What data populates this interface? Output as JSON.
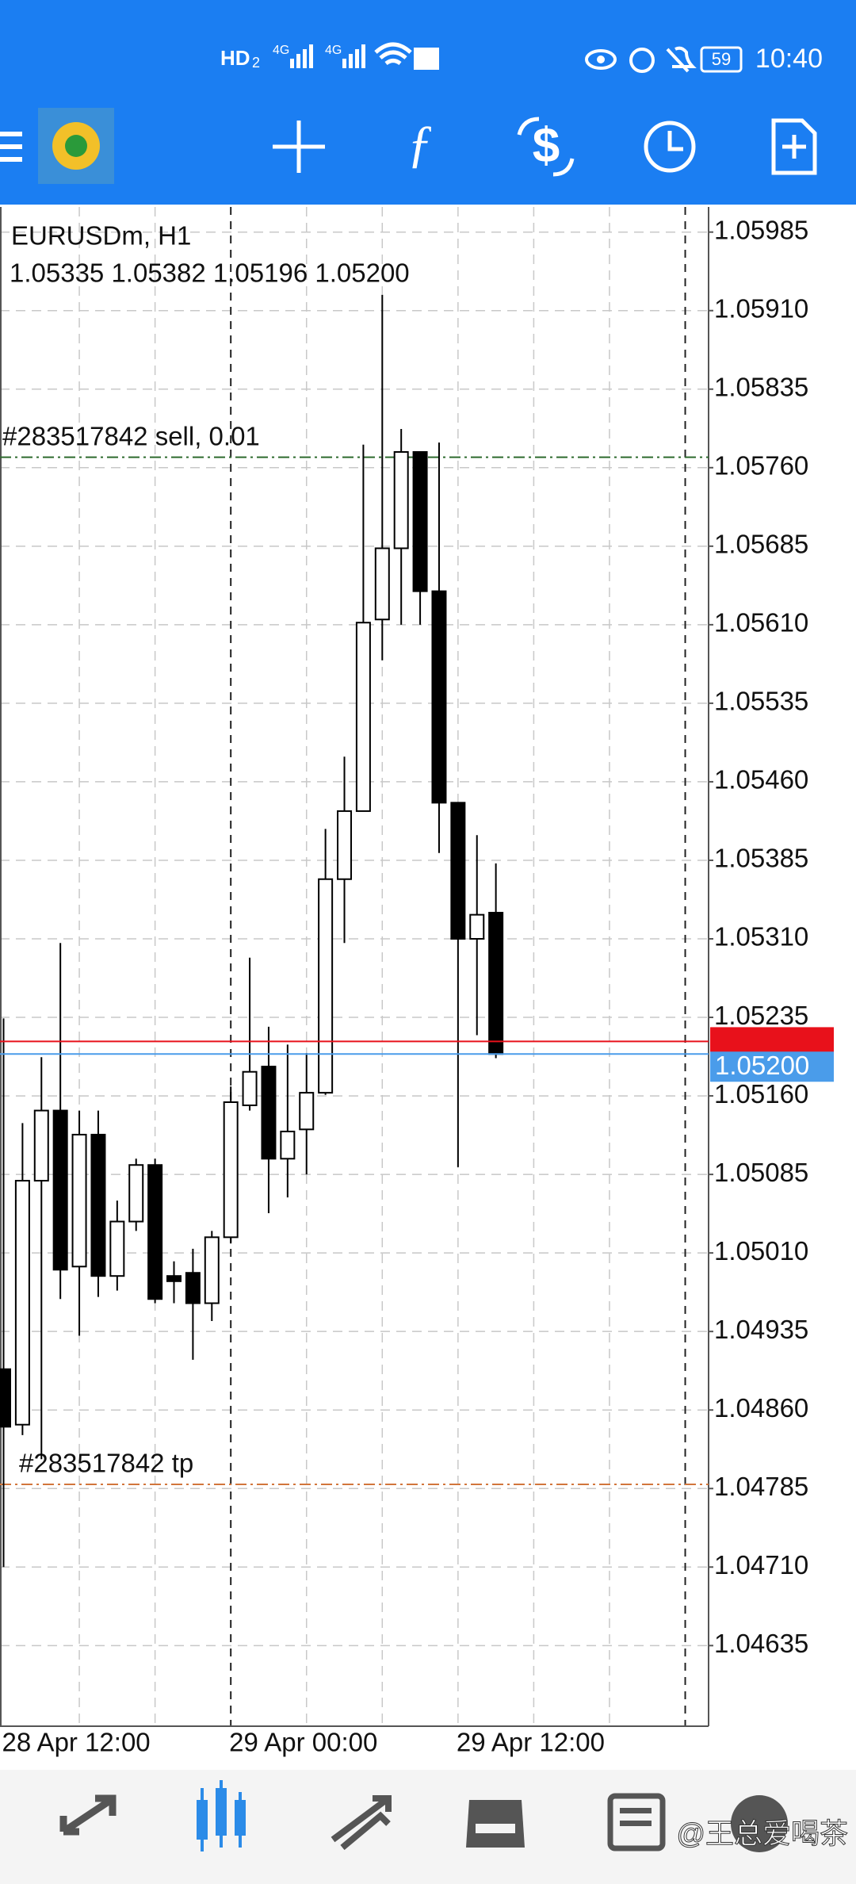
{
  "status_bar": {
    "network": "HD",
    "sim": "2",
    "signal_labels": [
      "4G",
      "4G"
    ],
    "battery": "59",
    "time": "10:40"
  },
  "watermark": "@王总爱喝茶",
  "chart_data": {
    "type": "candlestick",
    "symbol": "EURUSDm, H1",
    "ohlc_label": "1.05335 1.05382 1.05196 1.05200",
    "categories": [
      "28 Apr 12:00",
      null,
      null,
      null,
      null,
      null,
      null,
      null,
      null,
      null,
      null,
      null,
      "29 Apr 00:00",
      null,
      null,
      null,
      null,
      null,
      null,
      null,
      null,
      null,
      null,
      null,
      "29 Apr 12:00",
      null,
      null
    ],
    "open": [
      1.04899,
      1.04846,
      1.05079,
      1.05146,
      1.04997,
      1.05123,
      1.04988,
      1.0504,
      1.05094,
      1.04988,
      1.04991,
      1.04962,
      1.05025,
      1.05151,
      1.05188,
      1.051,
      1.05128,
      1.05163,
      1.05367,
      1.05432,
      1.05615,
      1.05683,
      1.05775,
      1.05642,
      1.0544,
      1.0531,
      1.05335
    ],
    "high": [
      1.05234,
      1.05134,
      1.05197,
      1.05306,
      1.05146,
      1.05146,
      1.0506,
      1.051,
      1.051,
      1.05002,
      1.05014,
      1.05031,
      1.05169,
      1.05292,
      1.05226,
      1.05209,
      1.05201,
      1.05415,
      1.05484,
      1.05782,
      1.05925,
      1.05797,
      1.05775,
      1.05784,
      1.0544,
      1.05409,
      1.05382
    ],
    "low": [
      1.0471,
      1.04836,
      1.04813,
      1.04966,
      1.04931,
      1.04968,
      1.04974,
      1.05031,
      1.04962,
      1.04962,
      1.04908,
      1.04945,
      1.05019,
      1.05146,
      1.05048,
      1.05063,
      1.05085,
      1.05161,
      1.05306,
      1.05432,
      1.05576,
      1.0561,
      1.0561,
      1.05392,
      1.05092,
      1.05218,
      1.05196
    ],
    "close": [
      1.04844,
      1.05079,
      1.05146,
      1.04994,
      1.05123,
      1.04988,
      1.0504,
      1.05094,
      1.04966,
      1.04983,
      1.04962,
      1.05025,
      1.05154,
      1.05183,
      1.051,
      1.05126,
      1.05163,
      1.05367,
      1.05432,
      1.05612,
      1.05683,
      1.05775,
      1.05642,
      1.0544,
      1.0531,
      1.05333,
      1.052
    ],
    "ylim": [
      1.04558,
      1.06009
    ],
    "yticks": [
      {
        "value": 1.05985,
        "label": "1.05985"
      },
      {
        "value": 1.0591,
        "label": "1.05910"
      },
      {
        "value": 1.05835,
        "label": "1.05835"
      },
      {
        "value": 1.0576,
        "label": "1.05760"
      },
      {
        "value": 1.05685,
        "label": "1.05685"
      },
      {
        "value": 1.0561,
        "label": "1.05610"
      },
      {
        "value": 1.05535,
        "label": "1.05535"
      },
      {
        "value": 1.0546,
        "label": "1.05460"
      },
      {
        "value": 1.05385,
        "label": "1.05385"
      },
      {
        "value": 1.0531,
        "label": "1.05310"
      },
      {
        "value": 1.05235,
        "label": "1.05235"
      },
      {
        "value": 1.0516,
        "label": "1.05160"
      },
      {
        "value": 1.05085,
        "label": "1.05085"
      },
      {
        "value": 1.0501,
        "label": "1.05010"
      },
      {
        "value": 1.04935,
        "label": "1.04935"
      },
      {
        "value": 1.0486,
        "label": "1.04860"
      },
      {
        "value": 1.04785,
        "label": "1.04785"
      },
      {
        "value": 1.0471,
        "label": "1.04710"
      },
      {
        "value": 1.04635,
        "label": "1.04635"
      }
    ],
    "grid": true,
    "levels": [
      {
        "name": "#283517842 sell, 0.01",
        "value": 1.0577,
        "color": "#2e6b2e"
      },
      {
        "name": "#283517842 tp",
        "value": 1.04789,
        "color": "#d2763c"
      }
    ],
    "ask": {
      "value": 1.05212,
      "color": "#e8111b"
    },
    "bid": {
      "value": 1.052,
      "label": "1.05200",
      "color": "#4a9cea"
    }
  }
}
